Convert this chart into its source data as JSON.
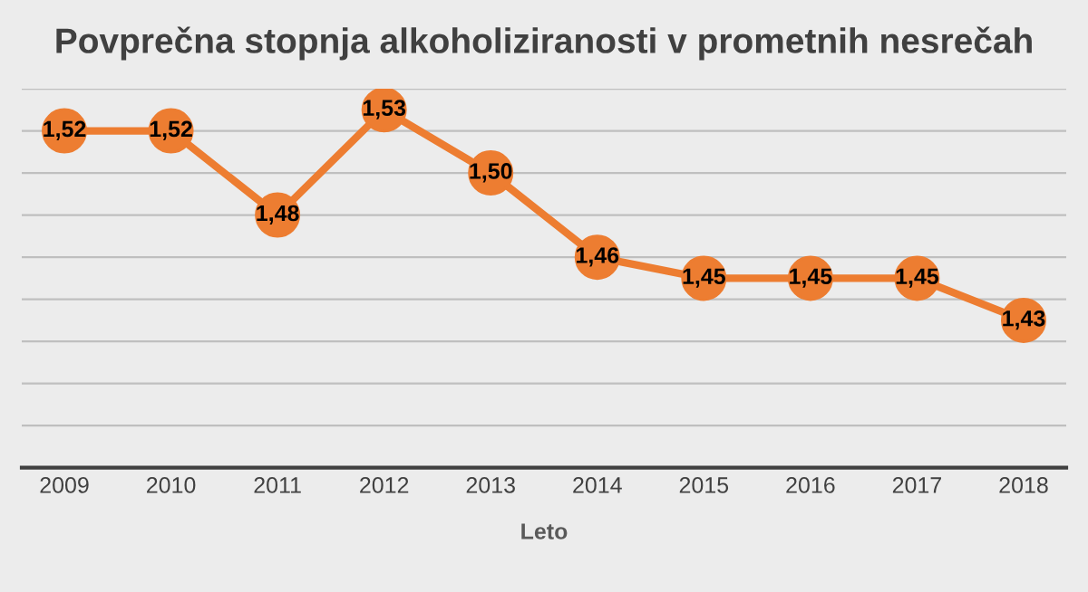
{
  "chart_data": {
    "type": "line",
    "title": "Povprečna stopnja alkoholiziranosti v prometnih nesrečah",
    "xlabel": "Leto",
    "categories": [
      "2009",
      "2010",
      "2011",
      "2012",
      "2013",
      "2014",
      "2015",
      "2016",
      "2017",
      "2018"
    ],
    "series": [
      {
        "color": "#ed7d31",
        "values": [
          1.52,
          1.52,
          1.48,
          1.53,
          1.5,
          1.46,
          1.45,
          1.45,
          1.45,
          1.43
        ],
        "value_labels": [
          "1,52",
          "1,52",
          "1,48",
          "1,53",
          "1,50",
          "1,46",
          "1,45",
          "1,45",
          "1,45",
          "1,43"
        ]
      }
    ],
    "ylim": [
      1.36,
      1.54
    ],
    "yticks": [
      {
        "value": 1.38,
        "label": null
      },
      {
        "value": 1.4,
        "label": null
      },
      {
        "value": 1.42,
        "label": null
      },
      {
        "value": 1.44,
        "label": null
      },
      {
        "value": 1.46,
        "label": null
      },
      {
        "value": 1.48,
        "label": null
      },
      {
        "value": 1.5,
        "label": null
      },
      {
        "value": 1.52,
        "label": null
      },
      {
        "value": 1.54,
        "label": null
      }
    ],
    "tick_labels": "x",
    "grid": "y",
    "marker": "circle",
    "line_style": "solid",
    "legend": false
  }
}
